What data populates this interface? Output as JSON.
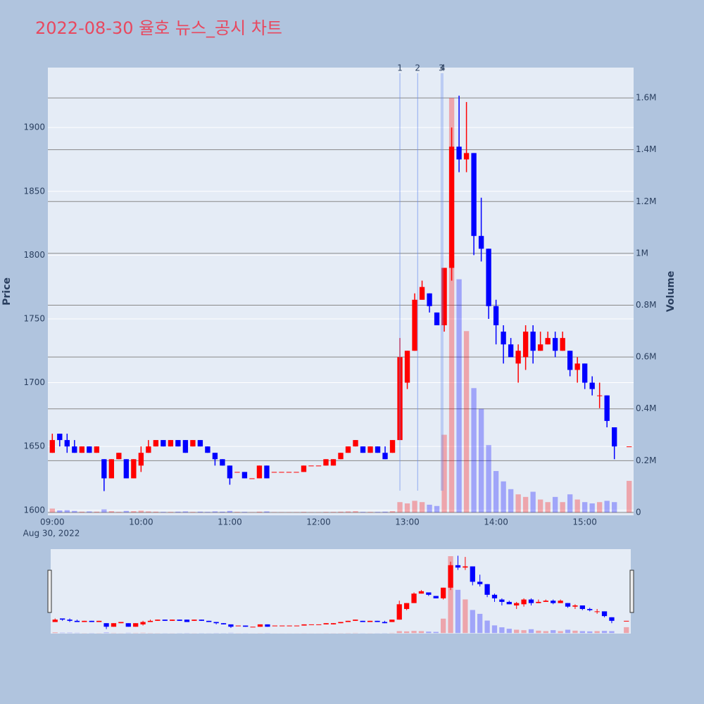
{
  "chart_data": {
    "type": "candlestick",
    "title": "2022-08-30 율호 뉴스_공시 차트",
    "ylabel": "Price",
    "y2label": "Volume",
    "x_date_label": "Aug 30, 2022",
    "up_color": "#ff0000",
    "down_color": "#0000ff",
    "x": [
      "09:00",
      "09:05",
      "09:10",
      "09:15",
      "09:20",
      "09:25",
      "09:30",
      "09:35",
      "09:40",
      "09:45",
      "09:50",
      "09:55",
      "10:00",
      "10:05",
      "10:10",
      "10:15",
      "10:20",
      "10:25",
      "10:30",
      "10:35",
      "10:40",
      "10:45",
      "10:50",
      "10:55",
      "11:00",
      "11:05",
      "11:10",
      "11:15",
      "11:20",
      "11:25",
      "11:30",
      "11:35",
      "11:40",
      "11:45",
      "11:50",
      "11:55",
      "12:00",
      "12:05",
      "12:10",
      "12:15",
      "12:20",
      "12:25",
      "12:30",
      "12:35",
      "12:40",
      "12:45",
      "12:50",
      "12:55",
      "13:00",
      "13:05",
      "13:10",
      "13:15",
      "13:20",
      "13:25",
      "13:30",
      "13:35",
      "13:40",
      "13:45",
      "13:50",
      "13:55",
      "14:00",
      "14:05",
      "14:10",
      "14:15",
      "14:20",
      "14:25",
      "14:30",
      "14:35",
      "14:40",
      "14:45",
      "14:50",
      "14:55",
      "15:00",
      "15:05",
      "15:10",
      "15:15",
      "15:20",
      "15:30"
    ],
    "open": [
      1645,
      1660,
      1655,
      1650,
      1645,
      1650,
      1645,
      1640,
      1625,
      1640,
      1640,
      1625,
      1635,
      1645,
      1650,
      1655,
      1650,
      1655,
      1655,
      1650,
      1655,
      1650,
      1645,
      1640,
      1635,
      1630,
      1630,
      1625,
      1625,
      1635,
      1630,
      1630,
      1630,
      1630,
      1630,
      1635,
      1635,
      1635,
      1635,
      1640,
      1645,
      1650,
      1650,
      1645,
      1650,
      1645,
      1645,
      1655,
      1700,
      1725,
      1765,
      1770,
      1755,
      1745,
      1790,
      1885,
      1875,
      1880,
      1815,
      1805,
      1760,
      1740,
      1730,
      1715,
      1720,
      1740,
      1725,
      1730,
      1735,
      1725,
      1725,
      1710,
      1715,
      1700,
      1690,
      1690,
      1665,
      1650
    ],
    "high": [
      1660,
      1660,
      1660,
      1655,
      1650,
      1650,
      1650,
      1640,
      1640,
      1645,
      1640,
      1640,
      1650,
      1655,
      1655,
      1655,
      1655,
      1655,
      1655,
      1655,
      1655,
      1650,
      1645,
      1640,
      1635,
      1630,
      1630,
      1625,
      1635,
      1635,
      1630,
      1630,
      1630,
      1630,
      1635,
      1635,
      1635,
      1640,
      1640,
      1645,
      1650,
      1655,
      1650,
      1650,
      1650,
      1650,
      1655,
      1735,
      1725,
      1770,
      1780,
      1770,
      1755,
      1790,
      1900,
      1925,
      1920,
      1880,
      1845,
      1805,
      1765,
      1745,
      1735,
      1730,
      1745,
      1745,
      1740,
      1740,
      1740,
      1740,
      1725,
      1720,
      1715,
      1705,
      1700,
      1690,
      1665,
      1650
    ],
    "low": [
      1645,
      1650,
      1645,
      1645,
      1645,
      1645,
      1645,
      1615,
      1625,
      1640,
      1625,
      1625,
      1630,
      1645,
      1650,
      1650,
      1650,
      1650,
      1645,
      1650,
      1650,
      1645,
      1635,
      1635,
      1620,
      1630,
      1625,
      1625,
      1625,
      1625,
      1630,
      1630,
      1630,
      1630,
      1630,
      1635,
      1635,
      1635,
      1635,
      1640,
      1645,
      1650,
      1645,
      1645,
      1645,
      1640,
      1645,
      1655,
      1695,
      1725,
      1765,
      1755,
      1745,
      1740,
      1780,
      1865,
      1865,
      1800,
      1795,
      1750,
      1730,
      1715,
      1720,
      1700,
      1710,
      1715,
      1725,
      1730,
      1720,
      1725,
      1705,
      1700,
      1695,
      1690,
      1680,
      1665,
      1640,
      1650
    ],
    "close": [
      1655,
      1655,
      1650,
      1645,
      1650,
      1645,
      1650,
      1625,
      1640,
      1645,
      1625,
      1640,
      1645,
      1650,
      1655,
      1650,
      1655,
      1650,
      1645,
      1655,
      1650,
      1645,
      1640,
      1635,
      1625,
      1630,
      1625,
      1625,
      1635,
      1625,
      1630,
      1630,
      1630,
      1630,
      1635,
      1635,
      1635,
      1640,
      1640,
      1645,
      1650,
      1655,
      1645,
      1650,
      1645,
      1640,
      1655,
      1720,
      1725,
      1765,
      1775,
      1760,
      1745,
      1790,
      1885,
      1875,
      1880,
      1815,
      1805,
      1760,
      1745,
      1730,
      1720,
      1725,
      1740,
      1725,
      1730,
      1735,
      1725,
      1735,
      1710,
      1715,
      1700,
      1695,
      1690,
      1670,
      1650,
      1650
    ],
    "volume": [
      15000,
      8000,
      9000,
      6000,
      3000,
      4000,
      3000,
      12000,
      5000,
      2000,
      6000,
      5000,
      7000,
      4000,
      3000,
      2000,
      2000,
      3000,
      4000,
      2000,
      3000,
      2000,
      4000,
      3000,
      6000,
      2000,
      2000,
      1000,
      3000,
      4000,
      1000,
      1000,
      1000,
      1000,
      2000,
      1000,
      1000,
      2000,
      2000,
      3000,
      4000,
      5000,
      2000,
      2000,
      2000,
      3000,
      5000,
      40000,
      35000,
      45000,
      40000,
      30000,
      25000,
      300000,
      1600000,
      900000,
      700000,
      480000,
      400000,
      260000,
      160000,
      120000,
      90000,
      70000,
      60000,
      80000,
      50000,
      40000,
      60000,
      40000,
      70000,
      50000,
      40000,
      35000,
      40000,
      45000,
      40000,
      122000
    ],
    "news": [
      {
        "label": "1",
        "x": "12:55"
      },
      {
        "label": "2",
        "x": "13:07"
      },
      {
        "label": "3",
        "x": "13:23"
      },
      {
        "label": "4",
        "x": "13:24"
      }
    ],
    "xlim": [
      "08:57",
      "15:33"
    ],
    "xticks": [
      "09:00",
      "10:00",
      "11:00",
      "12:00",
      "13:00",
      "14:00",
      "15:00"
    ],
    "ylim": [
      1596,
      1947
    ],
    "yticks": [
      1600,
      1650,
      1700,
      1750,
      1800,
      1850,
      1900
    ],
    "y2lim": [
      -11000,
      1717000
    ],
    "y2ticks": [
      0,
      {
        "value": 200000,
        "label": "0.2M"
      },
      {
        "value": 400000,
        "label": "0.4M"
      },
      {
        "value": 600000,
        "label": "0.6M"
      },
      {
        "value": 800000,
        "label": "0.8M"
      },
      {
        "value": 1000000,
        "label": "1M"
      },
      {
        "value": 1200000,
        "label": "1.2M"
      },
      {
        "value": 1400000,
        "label": "1.4M"
      },
      {
        "value": 1600000,
        "label": "1.6M"
      }
    ],
    "grid": true
  }
}
